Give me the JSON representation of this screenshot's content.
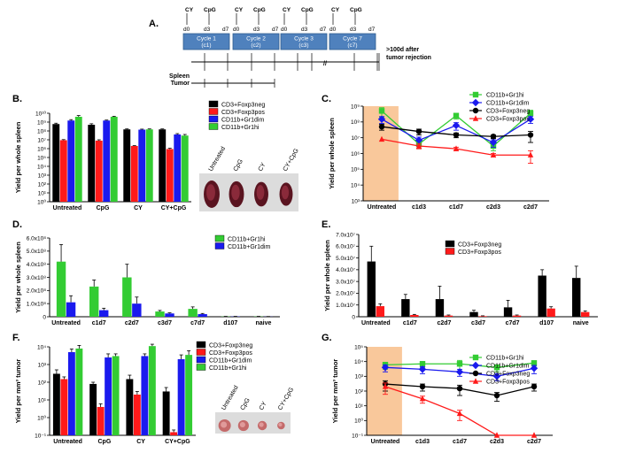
{
  "colors": {
    "black": "#000000",
    "red": "#ff1a1a",
    "blue": "#1a1aee",
    "green": "#33cc33",
    "orange": "#f9c89b",
    "cycleBox": "#4f81bd",
    "cycleEdge": "#2f5d8f"
  },
  "panel_labels": [
    "A.",
    "B.",
    "C.",
    "D.",
    "E.",
    "F.",
    "G."
  ],
  "schematic": {
    "cycles": [
      {
        "label": "Cycle 1",
        "sub": "(c1)"
      },
      {
        "label": "Cycle 2",
        "sub": "(c2)"
      },
      {
        "label": "Cycle 3",
        "sub": "(c3)"
      },
      {
        "label": "Cycle 7",
        "sub": "(c7)"
      }
    ],
    "top_labels": [
      "CY",
      "CpG"
    ],
    "day_labels": [
      "d0",
      "d3",
      "d7"
    ],
    "rows": [
      "Spleen",
      "Tumor"
    ],
    "after": ">100d after tumor rejection",
    "after_lines": [
      ">100d after",
      "tumor rejection"
    ]
  },
  "photo_labels": {
    "spleen": [
      "Untreated",
      "CpG",
      "CY",
      "CY+CpG"
    ],
    "tumor": [
      "Untreated",
      "CpG",
      "CY",
      "CY+CpG"
    ]
  },
  "chart_data": [
    {
      "id": "B",
      "type": "bar",
      "scale": "log",
      "ylim_exp": [
        0,
        10
      ],
      "ylabel": "Yield per whole spleen",
      "categories": [
        "Untreated",
        "CpG",
        "CY",
        "CY+CpG"
      ],
      "series": [
        {
          "name": "CD3+Foxp3neg",
          "color": "#000000",
          "values": [
            600000000,
            500000000,
            150000000,
            150000000
          ],
          "errors": [
            150000000,
            150000000,
            20000000,
            20000000
          ]
        },
        {
          "name": "CD3+Foxp3pos",
          "color": "#ff1a1a",
          "values": [
            9000000,
            8000000,
            2000000,
            900000
          ],
          "errors": [
            1500000,
            2000000,
            200000,
            200000
          ]
        },
        {
          "name": "CD11b+Gr1dim",
          "color": "#1a1aee",
          "values": [
            1500000000,
            1500000000,
            140000000,
            40000000
          ],
          "errors": [
            400000000,
            200000000,
            20000000,
            10000000
          ]
        },
        {
          "name": "CD11b+Gr1hi",
          "color": "#33cc33",
          "values": [
            4000000000,
            4000000000,
            150000000,
            30000000
          ],
          "errors": [
            1500000000,
            500000000,
            20000000,
            10000000
          ]
        }
      ]
    },
    {
      "id": "C",
      "type": "line",
      "scale": "log",
      "ylim_exp": [
        3,
        9
      ],
      "ylabel": "Yield per whole spleen",
      "categories": [
        "Untreated",
        "c1d3",
        "c1d7",
        "c2d3",
        "c2d7"
      ],
      "series": [
        {
          "name": "CD11b+Gr1hi",
          "color": "#33cc33",
          "marker": "square",
          "values": [
            500000000,
            4000000,
            250000000,
            3000000,
            350000000
          ],
          "errors": [
            300000000,
            2000000,
            100000000,
            1500000,
            200000000
          ]
        },
        {
          "name": "CD11b+Gr1dim",
          "color": "#1a1aee",
          "marker": "diamond",
          "values": [
            150000000,
            7000000,
            60000000,
            5000000,
            150000000
          ],
          "errors": [
            70000000,
            4000000,
            30000000,
            2500000,
            70000000
          ]
        },
        {
          "name": "CD3+Foxp3neg",
          "color": "#000000",
          "marker": "circle",
          "values": [
            50000000,
            25000000,
            15000000,
            12000000,
            15000000
          ],
          "errors": [
            20000000,
            10000000,
            5000000,
            3000000,
            10000000
          ]
        },
        {
          "name": "CD3+Foxp3pos",
          "color": "#ff1a1a",
          "marker": "triangle",
          "values": [
            8000000,
            3000000,
            2000000,
            800000,
            800000
          ],
          "errors": [
            0,
            1000000,
            500000,
            200000,
            700000
          ]
        }
      ]
    },
    {
      "id": "D",
      "type": "bar",
      "scale": "linear",
      "ylim": [
        0,
        600000000
      ],
      "yticks": [
        "0",
        "1.0x10⁸",
        "2.0x10⁸",
        "3.0x10⁸",
        "4.0x10⁸",
        "5.0x10⁸",
        "6.0x10⁸"
      ],
      "ylabel": "Yield per whole spleen",
      "categories": [
        "Untreated",
        "c1d7",
        "c2d7",
        "c3d7",
        "c7d7",
        "d107",
        "naive"
      ],
      "series": [
        {
          "name": "CD11b+Gr1hi",
          "color": "#33cc33",
          "values": [
            420000000,
            230000000,
            300000000,
            40000000,
            60000000,
            2000000,
            2000000
          ],
          "errors": [
            130000000,
            50000000,
            100000000,
            8000000,
            15000000,
            1000000,
            1000000
          ]
        },
        {
          "name": "CD11b+Gr1dim",
          "color": "#1a1aee",
          "values": [
            110000000,
            50000000,
            100000000,
            25000000,
            20000000,
            2000000,
            1000000
          ],
          "errors": [
            50000000,
            15000000,
            50000000,
            5000000,
            5000000,
            1000000,
            1000000
          ]
        }
      ]
    },
    {
      "id": "E",
      "type": "bar",
      "scale": "linear",
      "ylim": [
        0,
        70000000
      ],
      "yticks": [
        "0",
        "1.0x10⁷",
        "2.0x10⁷",
        "3.0x10⁷",
        "4.0x10⁷",
        "5.0x10⁷",
        "6.0x10⁷",
        "7.0x10⁷"
      ],
      "ylabel": "Yield per whole spleen",
      "categories": [
        "Untreated",
        "c1d7",
        "c2d7",
        "c3d7",
        "c7d7",
        "d107",
        "naive"
      ],
      "series": [
        {
          "name": "CD3+Foxp3neg",
          "color": "#000000",
          "values": [
            47000000,
            15000000,
            15000000,
            4000000,
            8000000,
            35000000,
            33000000
          ],
          "errors": [
            13000000,
            4000000,
            11000000,
            1500000,
            6000000,
            5000000,
            10000000
          ]
        },
        {
          "name": "CD3+Foxp3pos",
          "color": "#ff1a1a",
          "values": [
            9000000,
            1500000,
            1000000,
            500000,
            1000000,
            7000000,
            4000000
          ],
          "errors": [
            2000000,
            500000,
            500000,
            300000,
            500000,
            1500000,
            1000000
          ]
        }
      ]
    },
    {
      "id": "F",
      "type": "bar",
      "scale": "log",
      "ylim_exp": [
        -1,
        4
      ],
      "ylabel": "Yield per mm³ tumor",
      "categories": [
        "Untreated",
        "CpG",
        "CY",
        "CY+CpG"
      ],
      "series": [
        {
          "name": "CD3+Foxp3neg",
          "color": "#000000",
          "values": [
            300,
            80,
            150,
            30
          ],
          "errors": [
            200,
            20,
            100,
            20
          ]
        },
        {
          "name": "CD3+Foxp3pos",
          "color": "#ff1a1a",
          "values": [
            150,
            4,
            20,
            0.15
          ],
          "errors": [
            50,
            2,
            10,
            0.05
          ]
        },
        {
          "name": "CD11b+Gr1dim",
          "color": "#1a1aee",
          "values": [
            5000,
            2500,
            3000,
            2000
          ],
          "errors": [
            2500,
            1500,
            1000,
            1500
          ]
        },
        {
          "name": "CD11b+Gr1hi",
          "color": "#33cc33",
          "values": [
            8000,
            3000,
            11000,
            3500
          ],
          "errors": [
            4000,
            1000,
            3000,
            2500
          ]
        }
      ]
    },
    {
      "id": "G",
      "type": "line",
      "scale": "log",
      "ylim_exp": [
        -1,
        5
      ],
      "ylabel": "Yield per mm³ tumor",
      "categories": [
        "Untreated",
        "c1d3",
        "c1d7",
        "c2d3",
        "c2d7"
      ],
      "series": [
        {
          "name": "CD11b+Gr1hi",
          "color": "#33cc33",
          "marker": "square",
          "values": [
            6000,
            7000,
            7000,
            4000,
            8000
          ],
          "errors": [
            3000,
            3000,
            5000,
            2000,
            3000
          ]
        },
        {
          "name": "CD11b+Gr1dim",
          "color": "#1a1aee",
          "marker": "diamond",
          "values": [
            4000,
            3000,
            2000,
            1000,
            3500
          ],
          "errors": [
            2000,
            1500,
            1000,
            500,
            2000
          ]
        },
        {
          "name": "CD3+Foxp3neg",
          "color": "#000000",
          "marker": "circle",
          "values": [
            300,
            200,
            150,
            50,
            200
          ],
          "errors": [
            200,
            100,
            100,
            30,
            100
          ]
        },
        {
          "name": "CD3+Foxp3pos",
          "color": "#ff1a1a",
          "marker": "triangle",
          "values": [
            200,
            30,
            3,
            0.1,
            0.1
          ],
          "errors": [
            150,
            15,
            2,
            0,
            0
          ]
        }
      ]
    }
  ]
}
